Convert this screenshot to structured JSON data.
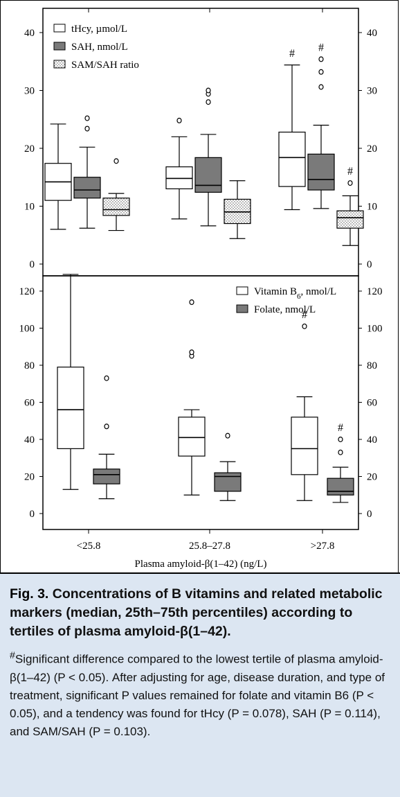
{
  "chart_data": [
    {
      "type": "box",
      "panel": "top",
      "categories": [
        "<25.8",
        "25.8–27.8",
        ">27.8"
      ],
      "ylim": [
        0,
        40
      ],
      "yticks": [
        0,
        10,
        20,
        30,
        40
      ],
      "legend_position": "top-left",
      "series": [
        {
          "name": "tHcy, µmol/L",
          "fill": "#ffffff",
          "boxes": [
            {
              "low": 6,
              "q1": 11,
              "median": 14.2,
              "q3": 17.4,
              "high": 24.2,
              "outliers": [],
              "flag": ""
            },
            {
              "low": 7.8,
              "q1": 13,
              "median": 14.8,
              "q3": 16.8,
              "high": 22,
              "outliers": [
                24.8
              ],
              "flag": ""
            },
            {
              "low": 9.4,
              "q1": 13.4,
              "median": 18.4,
              "q3": 22.8,
              "high": 34.4,
              "outliers": [],
              "flag": "#"
            }
          ]
        },
        {
          "name": "SAH, nmol/L",
          "fill": "#7a7a7a",
          "boxes": [
            {
              "low": 6.2,
              "q1": 11.4,
              "median": 12.8,
              "q3": 15,
              "high": 20.2,
              "outliers": [
                23.4,
                25.2
              ],
              "flag": ""
            },
            {
              "low": 6.6,
              "q1": 12.4,
              "median": 13.6,
              "q3": 18.4,
              "high": 22.4,
              "outliers": [
                28,
                29.4,
                30
              ],
              "flag": ""
            },
            {
              "low": 9.6,
              "q1": 12.8,
              "median": 14.6,
              "q3": 19,
              "high": 24,
              "outliers": [
                30.6,
                33.2,
                35.4
              ],
              "flag": "#"
            }
          ]
        },
        {
          "name": "SAM/SAH ratio",
          "fill": "dotted",
          "boxes": [
            {
              "low": 5.8,
              "q1": 8.4,
              "median": 9.4,
              "q3": 11.4,
              "high": 12.2,
              "outliers": [
                17.8
              ],
              "flag": ""
            },
            {
              "low": 4.4,
              "q1": 7,
              "median": 9,
              "q3": 11.2,
              "high": 14.4,
              "outliers": [],
              "flag": ""
            },
            {
              "low": 3.2,
              "q1": 6.2,
              "median": 8,
              "q3": 9.2,
              "high": 11.8,
              "outliers": [
                14
              ],
              "flag": "#"
            }
          ]
        }
      ]
    },
    {
      "type": "box",
      "panel": "bottom",
      "categories": [
        "<25.8",
        "25.8–27.8",
        ">27.8"
      ],
      "xlabel": "Plasma amyloid-β(1–42) (ng/L)",
      "ylim": [
        0,
        120
      ],
      "yticks": [
        0,
        20,
        40,
        60,
        80,
        100,
        120
      ],
      "legend_position": "top-right",
      "series": [
        {
          "name": "Vitamin B6, nmol/L",
          "fill": "#ffffff",
          "boxes": [
            {
              "low": 13,
              "q1": 35,
              "median": 56,
              "q3": 79,
              "high": 129,
              "outliers": [],
              "flag": ""
            },
            {
              "low": 10,
              "q1": 31,
              "median": 41,
              "q3": 52,
              "high": 56,
              "outliers": [
                85,
                87,
                114
              ],
              "flag": ""
            },
            {
              "low": 7,
              "q1": 21,
              "median": 35,
              "q3": 52,
              "high": 63,
              "outliers": [
                101
              ],
              "flag": "#"
            }
          ]
        },
        {
          "name": "Folate, nmol/L",
          "fill": "#7a7a7a",
          "boxes": [
            {
              "low": 8,
              "q1": 16,
              "median": 21,
              "q3": 24,
              "high": 32,
              "outliers": [
                47,
                73
              ],
              "flag": ""
            },
            {
              "low": 7,
              "q1": 12,
              "median": 20,
              "q3": 22,
              "high": 28,
              "outliers": [
                42
              ],
              "flag": ""
            },
            {
              "low": 6,
              "q1": 10,
              "median": 12,
              "q3": 19,
              "high": 25,
              "outliers": [
                33,
                40
              ],
              "flag": "#"
            }
          ]
        }
      ]
    }
  ],
  "caption": {
    "label": "Fig. 3.",
    "title": "Concentrations of B vitamins and related metabolic markers (median, 25th–75th percentiles) according to tertiles of plasma amyloid-β(1–42).",
    "footnote_mark": "#",
    "note": "Significant difference compared to the lowest tertile of plasma amyloid-β(1–42) (P < 0.05). After adjusting for age, disease duration, and type of treatment, significant P values remained for folate and vitamin B6 (P < 0.05), and a tendency was found for tHcy (P = 0.078), SAH (P = 0.114), and SAM/SAH (P = 0.103)."
  }
}
